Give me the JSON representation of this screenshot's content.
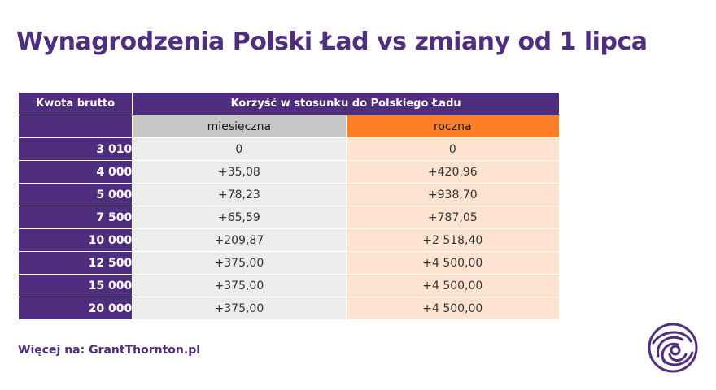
{
  "title": "Wynagrodzenia Polski Ład vs zmiany od 1 lipca",
  "table": {
    "header_amount": "Kwota brutto",
    "header_benefit": "Korzyść w stosunku do Polskiego Ładu",
    "sub_monthly": "miesięczna",
    "sub_yearly": "roczna",
    "rows": [
      {
        "amount": "3 010",
        "monthly": "0",
        "yearly": "0"
      },
      {
        "amount": "4 000",
        "monthly": "+35,08",
        "yearly": "+420,96"
      },
      {
        "amount": "5 000",
        "monthly": "+78,23",
        "yearly": "+938,70"
      },
      {
        "amount": "7 500",
        "monthly": "+65,59",
        "yearly": "+787,05"
      },
      {
        "amount": "10 000",
        "monthly": "+209,87",
        "yearly": "+2 518,40"
      },
      {
        "amount": "12 500",
        "monthly": "+375,00",
        "yearly": "+4 500,00"
      },
      {
        "amount": "15 000",
        "monthly": "+375,00",
        "yearly": "+4 500,00"
      },
      {
        "amount": "20 000",
        "monthly": "+375,00",
        "yearly": "+4 500,00"
      }
    ]
  },
  "footer": "Więcej na: GrantThornton.pl",
  "logo_icon": "grant-thornton-swirl-logo",
  "colors": {
    "brand_purple": "#4f2d7f",
    "accent_orange": "#ff7f29",
    "monthly_header": "#c9c7c6",
    "monthly_cell": "#ececec",
    "yearly_cell": "#fde3d0"
  }
}
